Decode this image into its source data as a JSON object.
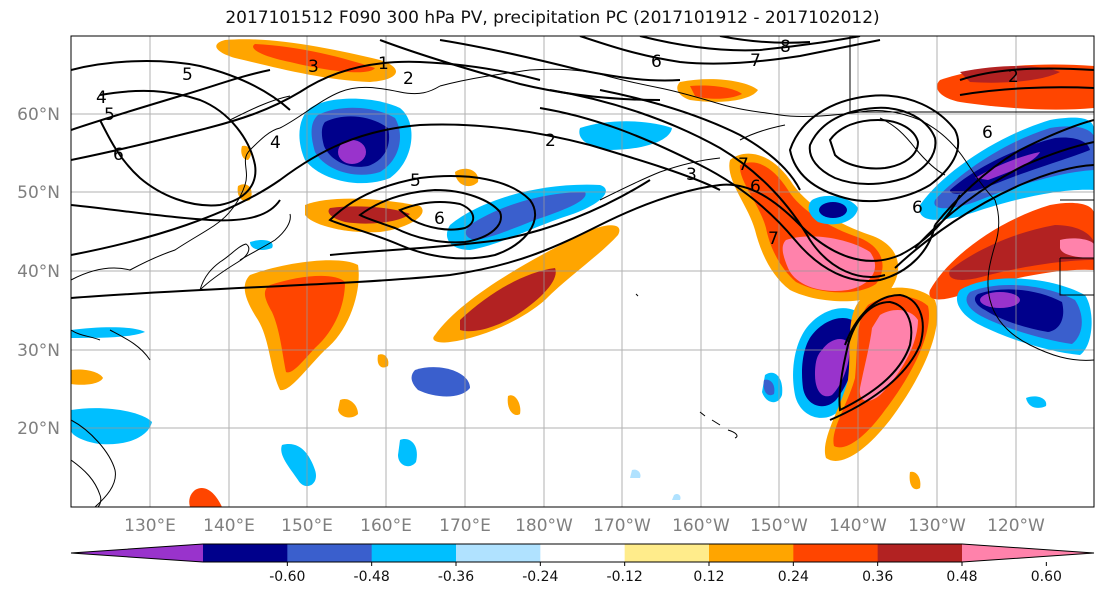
{
  "title": "2017101512 F090 300 hPa PV, precipitation PC (2017101912 - 2017102012)",
  "lat_labels": [
    "60°N",
    "50°N",
    "40°N",
    "30°N",
    "20°N"
  ],
  "lon_labels": [
    "130°E",
    "140°E",
    "150°E",
    "160°E",
    "170°E",
    "180°W",
    "170°W",
    "160°W",
    "150°W",
    "140°W",
    "130°W",
    "120°W"
  ],
  "colorbar": {
    "colors": [
      "#9933cc",
      "#00008b",
      "#3a5fcd",
      "#00bfff",
      "#b0e2ff",
      "#ffffff",
      "#ffec8b",
      "#ffa500",
      "#ff4500",
      "#b22222",
      "#ff82ab"
    ],
    "tick_labels": [
      "-0.60",
      "-0.48",
      "-0.36",
      "-0.24",
      "-0.12",
      "0.12",
      "0.24",
      "0.36",
      "0.48",
      "0.60"
    ]
  },
  "contour_labels": [
    "5",
    "4",
    "5",
    "6",
    "3",
    "1",
    "2",
    "4",
    "5",
    "6",
    "2",
    "6",
    "7",
    "8",
    "3",
    "7",
    "6",
    "7",
    "2",
    "6",
    "6"
  ]
}
